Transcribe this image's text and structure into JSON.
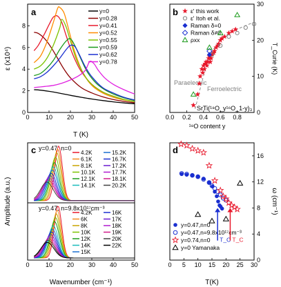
{
  "panels": {
    "a": {
      "letter": "a",
      "xlabel": "T (K)",
      "ylabel": "ε (x10⁴)"
    },
    "b": {
      "letter": "b",
      "xlabel": "¹⁸O content y",
      "ylabel": "T_Curie (K)",
      "annot_para": "Paraelectric",
      "annot_ferro": "Ferroelectric",
      "formula": "SrTi(¹⁸O_y¹⁶O_1-y)₃"
    },
    "c": {
      "letter": "c",
      "ylabel": "Amplitude (a.u.)",
      "xlabel": "Wavenumber (cm⁻¹)",
      "top_title": "y=0.47, n=0",
      "bottom_title": "y=0.47, n=9.8x10¹⁷cm⁻³"
    },
    "d": {
      "letter": "d",
      "xlabel": "T(K)",
      "ylabel": "ω (cm⁻¹)",
      "tc_label": "T_C"
    }
  },
  "chart_data": [
    {
      "id": "a",
      "type": "line",
      "xlabel": "T (K)",
      "ylabel": "ε (x10⁴)",
      "xlim": [
        0,
        50
      ],
      "ylim": [
        0,
        10
      ],
      "xticks": [
        0,
        10,
        20,
        30,
        40,
        50
      ],
      "yticks": [
        0,
        2,
        4,
        6,
        8
      ],
      "legend": "top-right",
      "series": [
        {
          "name": "y=0",
          "color": "#000000",
          "x": [
            3,
            6,
            10,
            15,
            20,
            25,
            30,
            35,
            40,
            45,
            50
          ],
          "y": [
            2.1,
            2.06,
            1.95,
            1.78,
            1.58,
            1.4,
            1.24,
            1.1,
            0.98,
            0.88,
            0.8
          ]
        },
        {
          "name": "y=0.28",
          "color": "#8b0000",
          "x": [
            3,
            5,
            8,
            11,
            14,
            17,
            20,
            25,
            30,
            35,
            40,
            45,
            50
          ],
          "y": [
            7.4,
            7.3,
            6.8,
            6.0,
            5.0,
            4.0,
            3.2,
            2.3,
            1.8,
            1.45,
            1.2,
            1.02,
            0.9
          ]
        },
        {
          "name": "y=0.41",
          "color": "#e8192c",
          "x": [
            3,
            5,
            8,
            10,
            12,
            14,
            16,
            18,
            21,
            25,
            30,
            35,
            40,
            45,
            50
          ],
          "y": [
            5.7,
            6.2,
            7.3,
            8.1,
            8.8,
            8.9,
            8.3,
            7.1,
            5.4,
            3.8,
            2.6,
            1.9,
            1.5,
            1.2,
            1.0
          ]
        },
        {
          "name": "y=0.52",
          "color": "#ff8c00",
          "x": [
            3,
            6,
            9,
            12,
            14,
            15,
            17,
            19,
            22,
            26,
            30,
            35,
            40,
            45,
            50
          ],
          "y": [
            4.6,
            5.2,
            6.5,
            8.3,
            9.6,
            9.7,
            9.2,
            7.8,
            5.6,
            3.6,
            2.5,
            1.8,
            1.4,
            1.15,
            1.0
          ]
        },
        {
          "name": "y=0.55",
          "color": "#7cc300",
          "x": [
            3,
            6,
            9,
            12,
            15,
            16,
            18,
            20,
            23,
            27,
            30,
            35,
            40,
            45,
            50
          ],
          "y": [
            4.0,
            4.3,
            5.0,
            6.2,
            7.8,
            8.6,
            7.9,
            6.6,
            4.8,
            3.3,
            2.6,
            1.9,
            1.5,
            1.2,
            1.0
          ]
        },
        {
          "name": "y=0.59",
          "color": "#1a9a1a",
          "x": [
            3,
            6,
            9,
            12,
            15,
            18,
            20,
            22,
            25,
            28,
            32,
            36,
            40,
            45,
            50
          ],
          "y": [
            3.4,
            3.6,
            4.1,
            4.8,
            5.8,
            6.6,
            6.8,
            6.2,
            4.9,
            3.7,
            2.7,
            2.1,
            1.7,
            1.35,
            1.1
          ]
        },
        {
          "name": "y=0.62",
          "color": "#1a2fd0",
          "x": [
            3,
            6,
            9,
            12,
            15,
            18,
            20,
            22,
            24,
            27,
            30,
            35,
            40,
            45,
            50
          ],
          "y": [
            3.1,
            3.3,
            3.7,
            4.3,
            5.0,
            5.8,
            6.2,
            6.1,
            5.4,
            4.2,
            3.3,
            2.3,
            1.8,
            1.4,
            1.15
          ]
        },
        {
          "name": "y=0.78",
          "color": "#e020e0",
          "x": [
            3,
            8,
            12,
            16,
            20,
            24,
            27,
            29,
            31,
            33,
            36,
            40,
            45,
            50
          ],
          "y": [
            2.3,
            2.4,
            2.5,
            2.7,
            3.0,
            3.4,
            3.9,
            4.7,
            4.5,
            3.9,
            3.2,
            2.6,
            2.1,
            1.7
          ]
        }
      ]
    },
    {
      "id": "b",
      "type": "scatter",
      "xlabel": "¹⁸O content y",
      "ylabel": "T_Curie (K)",
      "xlim": [
        0.0,
        1.0
      ],
      "ylim": [
        0,
        30
      ],
      "xticks": [
        0.0,
        0.2,
        0.4,
        0.6,
        0.8
      ],
      "yticks": [
        0,
        10,
        20,
        30
      ],
      "legend": "top-left",
      "series": [
        {
          "name": "ε' this work",
          "marker": "star-filled",
          "color": "#e8192c",
          "points": [
            [
              0.28,
              2
            ],
            [
              0.33,
              5
            ],
            [
              0.35,
              8
            ],
            [
              0.36,
              10
            ],
            [
              0.38,
              12
            ],
            [
              0.39,
              11
            ],
            [
              0.4,
              13
            ],
            [
              0.41,
              12
            ],
            [
              0.42,
              13.5
            ],
            [
              0.43,
              14
            ],
            [
              0.44,
              13
            ],
            [
              0.45,
              14
            ],
            [
              0.46,
              15
            ],
            [
              0.47,
              15.5
            ],
            [
              0.48,
              14
            ],
            [
              0.49,
              15
            ],
            [
              0.5,
              16
            ],
            [
              0.52,
              16.5
            ],
            [
              0.53,
              17
            ],
            [
              0.55,
              18
            ],
            [
              0.57,
              18.5
            ],
            [
              0.58,
              19
            ],
            [
              0.6,
              20
            ],
            [
              0.62,
              20.5
            ],
            [
              0.65,
              21
            ],
            [
              0.7,
              22
            ],
            [
              0.74,
              22.5
            ],
            [
              0.78,
              23
            ]
          ]
        },
        {
          "name": "ε' Itoh et al.",
          "marker": "circle-open",
          "color": "#808080",
          "points": [
            [
              0.5,
              16
            ],
            [
              0.6,
              18.5
            ],
            [
              0.7,
              21
            ],
            [
              0.8,
              22
            ],
            [
              0.9,
              23.5
            ],
            [
              1.0,
              24.5
            ]
          ]
        },
        {
          "name": "Raman δ=0",
          "marker": "diamond-filled",
          "color": "#1a2fd0",
          "points": [
            [
              0.47,
              16
            ]
          ]
        },
        {
          "name": "Raman δ≠0",
          "marker": "diamond-open",
          "color": "#1a2fd0",
          "points": [
            [
              0.47,
              17
            ]
          ]
        },
        {
          "name": "ρxx",
          "marker": "triangle-open",
          "color": "#1a9a1a",
          "points": [
            [
              0.28,
              5
            ],
            [
              0.47,
              18
            ],
            [
              0.6,
              22
            ],
            [
              0.8,
              27
            ]
          ]
        }
      ]
    },
    {
      "id": "c_top",
      "type": "line",
      "title": "y=0.47, n=0",
      "xlim": [
        0,
        50
      ],
      "ylim": [
        0,
        1.1
      ],
      "legend": "right",
      "peaks": [
        [
          4.2,
          14.5,
          1.0
        ],
        [
          6.1,
          14.0,
          0.95
        ],
        [
          8.1,
          13.6,
          0.88
        ],
        [
          10.1,
          13.0,
          0.8
        ],
        [
          12.1,
          12.5,
          0.7
        ],
        [
          14.1,
          12.0,
          0.62
        ],
        [
          15.2,
          11.6,
          0.56
        ],
        [
          16.7,
          11.0,
          0.5
        ],
        [
          17.2,
          10.5,
          0.46
        ],
        [
          17.7,
          10.0,
          0.42
        ],
        [
          18.1,
          9.6,
          0.38
        ],
        [
          20.2,
          9.0,
          0.34
        ]
      ],
      "series": [
        {
          "name": "4.2K",
          "color": "#e8192c"
        },
        {
          "name": "6.1K",
          "color": "#f58a1f"
        },
        {
          "name": "8.1K",
          "color": "#c9a400"
        },
        {
          "name": "10.1K",
          "color": "#7cc300"
        },
        {
          "name": "12.1K",
          "color": "#1a9a1a"
        },
        {
          "name": "14.1K",
          "color": "#1abcbc"
        },
        {
          "name": "15.2K",
          "color": "#1a6fd0"
        },
        {
          "name": "16.7K",
          "color": "#1a2fd0"
        },
        {
          "name": "17.2K",
          "color": "#6a1ad0"
        },
        {
          "name": "17.7K",
          "color": "#b01ad0"
        },
        {
          "name": "18.1K",
          "color": "#d01a8a"
        },
        {
          "name": "20.2K",
          "color": "#404040"
        }
      ]
    },
    {
      "id": "c_bottom",
      "type": "line",
      "title": "y=0.47, n=9.8x10¹⁷cm⁻³",
      "xlabel": "Wavenumber (cm⁻¹)",
      "xlim": [
        0,
        50
      ],
      "ylim": [
        0,
        1.1
      ],
      "xticks": [
        0,
        10,
        20,
        30,
        40,
        50
      ],
      "legend": "right",
      "peaks": [
        [
          4.2,
          14.2,
          1.0
        ],
        [
          6,
          13.8,
          0.92
        ],
        [
          8,
          13.4,
          0.85
        ],
        [
          10,
          13.0,
          0.78
        ],
        [
          12,
          12.6,
          0.7
        ],
        [
          14,
          12.0,
          0.62
        ],
        [
          15,
          11.6,
          0.55
        ],
        [
          16,
          11.2,
          0.5
        ],
        [
          17,
          10.8,
          0.45
        ],
        [
          18,
          10.4,
          0.41
        ],
        [
          19,
          10.0,
          0.37
        ],
        [
          20,
          9.6,
          0.34
        ],
        [
          22,
          9.2,
          0.3
        ]
      ],
      "series": [
        {
          "name": "4.2K",
          "color": "#e8192c"
        },
        {
          "name": "6K",
          "color": "#f58a1f"
        },
        {
          "name": "8K",
          "color": "#c9a400"
        },
        {
          "name": "10K",
          "color": "#7cc300"
        },
        {
          "name": "12K",
          "color": "#1a9a1a"
        },
        {
          "name": "14K",
          "color": "#1abcbc"
        },
        {
          "name": "15K",
          "color": "#1a6fd0"
        },
        {
          "name": "16K",
          "color": "#1a2fd0"
        },
        {
          "name": "17K",
          "color": "#6a1ad0"
        },
        {
          "name": "18K",
          "color": "#b01ad0"
        },
        {
          "name": "19K",
          "color": "#d01a8a"
        },
        {
          "name": "20K",
          "color": "#404040"
        },
        {
          "name": "22K",
          "color": "#000000"
        }
      ]
    },
    {
      "id": "d",
      "type": "scatter",
      "xlabel": "T(K)",
      "ylabel": "ω (cm⁻¹)",
      "xlim": [
        0,
        30
      ],
      "ylim": [
        0,
        18
      ],
      "xticks": [
        0,
        5,
        10,
        15,
        20,
        25,
        30
      ],
      "yticks": [
        0,
        4,
        8,
        12,
        16
      ],
      "legend": "bottom-left",
      "tc_arrows": [
        {
          "x": 17,
          "color": "#1a2fd0"
        },
        {
          "x": 21.5,
          "color": "#e8192c"
        }
      ],
      "series": [
        {
          "name": "y=0.47,n=0",
          "marker": "circle-filled",
          "color": "#1a2fd0",
          "points": [
            [
              4.2,
              13.2
            ],
            [
              6,
              13.1
            ],
            [
              8,
              13.0
            ],
            [
              10,
              12.8
            ],
            [
              12,
              12.5
            ],
            [
              14,
              11.9
            ],
            [
              15.2,
              11.3
            ],
            [
              16,
              10.5
            ],
            [
              16.7,
              9.8
            ],
            [
              17.2,
              9.0
            ],
            [
              17.7,
              8.4
            ],
            [
              18.1,
              8.2
            ],
            [
              18.6,
              7.9
            ]
          ]
        },
        {
          "name": "y=0.47,n=9.8x10¹⁷cm⁻³",
          "marker": "circle-open",
          "color": "#1a2fd0",
          "points": [
            [
              4.2,
              13.3
            ],
            [
              6,
              13.2
            ],
            [
              8,
              13.0
            ],
            [
              10,
              12.8
            ],
            [
              12,
              12.4
            ],
            [
              14,
              11.9
            ],
            [
              15,
              11.4
            ],
            [
              16,
              11.0
            ],
            [
              17,
              10.5
            ],
            [
              18,
              10.0
            ],
            [
              19,
              9.5
            ],
            [
              20,
              9.2
            ]
          ]
        },
        {
          "name": "y=0.74,n=0",
          "marker": "star-open",
          "color": "#e8192c",
          "points": [
            [
              4,
              17.8
            ],
            [
              6,
              17.6
            ],
            [
              8,
              17.1
            ],
            [
              10,
              16.8
            ],
            [
              12,
              16.5
            ],
            [
              14,
              14.5
            ],
            [
              16,
              12.2
            ],
            [
              18,
              10.7
            ],
            [
              19,
              9.8
            ],
            [
              20,
              9.4
            ],
            [
              21,
              8.8
            ],
            [
              22,
              8.4
            ],
            [
              23,
              8.1
            ],
            [
              24,
              7.8
            ]
          ]
        },
        {
          "name": "y=0 Yamanaka",
          "marker": "triangle-open",
          "color": "#000000",
          "points": [
            [
              10,
              7.0
            ],
            [
              15,
              6.0
            ],
            [
              20,
              6.3
            ],
            [
              25,
              11.8
            ]
          ]
        }
      ]
    }
  ]
}
